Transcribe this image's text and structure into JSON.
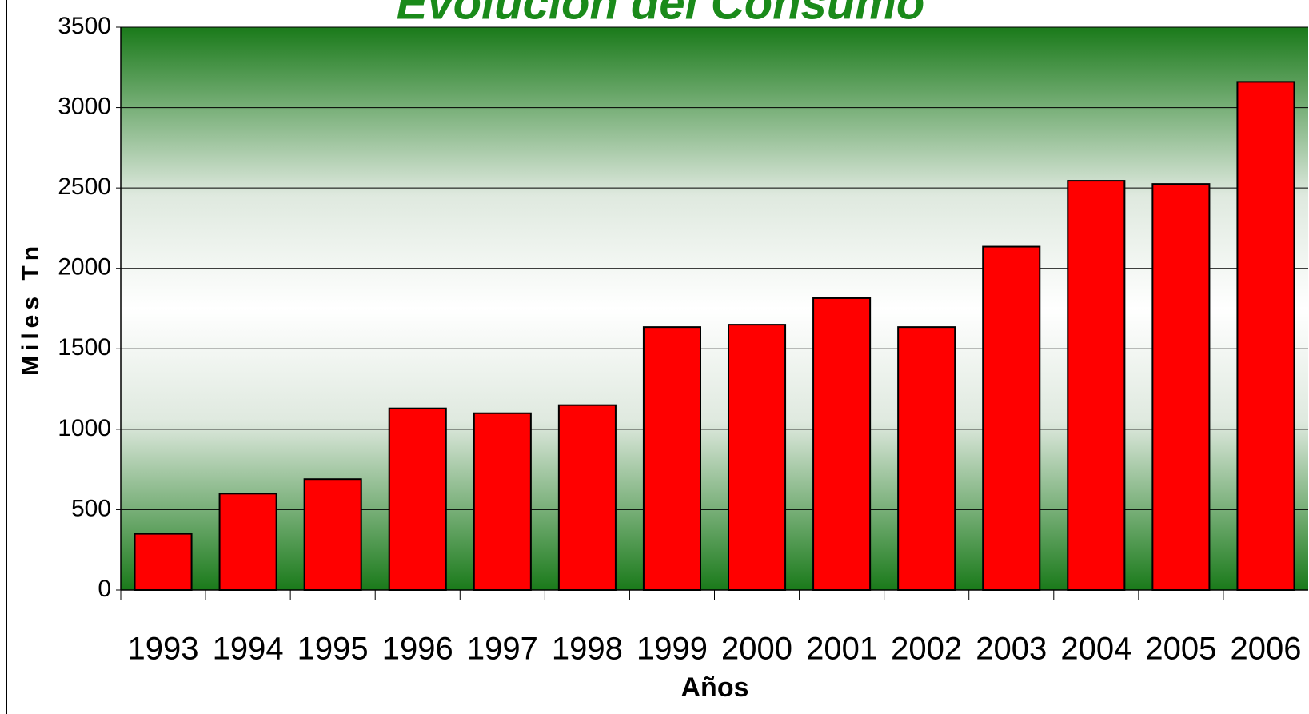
{
  "chart_data": {
    "type": "bar",
    "title": "Evolución del Consumo",
    "x_label": "Años",
    "y_label": "Miles Tn",
    "categories": [
      "1993",
      "1994",
      "1995",
      "1996",
      "1997",
      "1998",
      "1999",
      "2000",
      "2001",
      "2002",
      "2003",
      "2004",
      "2005",
      "2006"
    ],
    "values": [
      350,
      600,
      690,
      1130,
      1100,
      1150,
      1635,
      1650,
      1815,
      1635,
      2135,
      2545,
      2525,
      3160
    ],
    "color": "#ff0000",
    "ylim": [
      0,
      3500
    ],
    "yticks": [
      0,
      500,
      1000,
      1500,
      2000,
      2500,
      3000,
      3500
    ],
    "grid": true
  }
}
